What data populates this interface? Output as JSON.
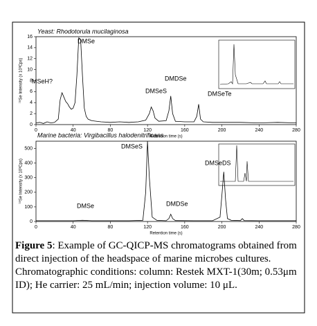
{
  "chart_data": [
    {
      "type": "line",
      "title": "Yeast: Rhodotorula mucilaginosa",
      "xlabel": "Retention time (s)",
      "ylabel": "⁷⁸Se Intensity (x 10³Cps)",
      "color": "#000000",
      "x": [
        0,
        4,
        8,
        12,
        16,
        20,
        24,
        26,
        28,
        30,
        32,
        34,
        36,
        38,
        40,
        42,
        44,
        46,
        48,
        50,
        52,
        54,
        56,
        60,
        70,
        80,
        90,
        100,
        110,
        118,
        122,
        124,
        126,
        128,
        132,
        140,
        143,
        145,
        147,
        150,
        160,
        170,
        173,
        175,
        177,
        180,
        190,
        200,
        220,
        240,
        260,
        280
      ],
      "values": [
        0.3,
        0.4,
        0.2,
        0.5,
        0.3,
        0.4,
        1.0,
        4.5,
        5.8,
        5.0,
        4.2,
        3.8,
        3.2,
        2.8,
        3.0,
        4.0,
        9.0,
        15.8,
        15.5,
        9.0,
        3.0,
        1.5,
        1.0,
        0.7,
        0.5,
        0.4,
        0.5,
        0.4,
        0.5,
        0.8,
        2.0,
        3.2,
        2.5,
        1.2,
        0.6,
        0.7,
        2.5,
        5.2,
        2.0,
        0.6,
        0.5,
        0.5,
        1.5,
        3.7,
        1.0,
        0.5,
        0.4,
        0.4,
        0.4,
        0.3,
        0.4,
        0.3
      ],
      "xlim": [
        0,
        280
      ],
      "ylim": [
        0,
        16
      ],
      "xticks": [
        0,
        40,
        80,
        120,
        160,
        200,
        240,
        280
      ],
      "yticks": [
        0,
        2,
        4,
        6,
        8,
        10,
        12,
        14,
        16
      ],
      "annotations": [
        "MSeH?",
        "DMSe",
        "DMSeS",
        "DMDSe",
        "DMSeTe"
      ]
    },
    {
      "type": "line",
      "title": "Marine bacteria: Virgibacillus halodenitrificans",
      "xlabel": "Retention time (s)",
      "ylabel": "⁷⁸Se Intensity (x 10³Cps)",
      "color": "#000000",
      "x": [
        0,
        20,
        40,
        50,
        60,
        80,
        100,
        115,
        118,
        120,
        122,
        125,
        130,
        140,
        143,
        145,
        147,
        150,
        170,
        190,
        198,
        200,
        202,
        204,
        206,
        210,
        220,
        222,
        224,
        240,
        260,
        280
      ],
      "values": [
        5,
        5,
        5,
        8,
        5,
        5,
        5,
        8,
        200,
        550,
        300,
        30,
        8,
        5,
        20,
        50,
        20,
        6,
        5,
        5,
        30,
        180,
        340,
        150,
        20,
        8,
        6,
        20,
        6,
        5,
        5,
        5
      ],
      "xlim": [
        0,
        280
      ],
      "ylim": [
        0,
        550
      ],
      "xticks": [
        0,
        40,
        80,
        120,
        160,
        200,
        240,
        280
      ],
      "yticks": [
        0,
        100,
        200,
        300,
        400,
        500
      ],
      "annotations": [
        "DMSe",
        "DMSeS",
        "DMDSe",
        "DMSeDS"
      ]
    }
  ],
  "caption": {
    "label": "Figure 5",
    "text": ": Example of GC-QICP-MS chromatograms obtained from direct injection of the headspace of  marine microbes cultures. Chromatographic conditions: column: Restek MXT-1(30m; 0.53μm ID); He carrier: 25 mL/min; injection volume: 10 μL."
  }
}
